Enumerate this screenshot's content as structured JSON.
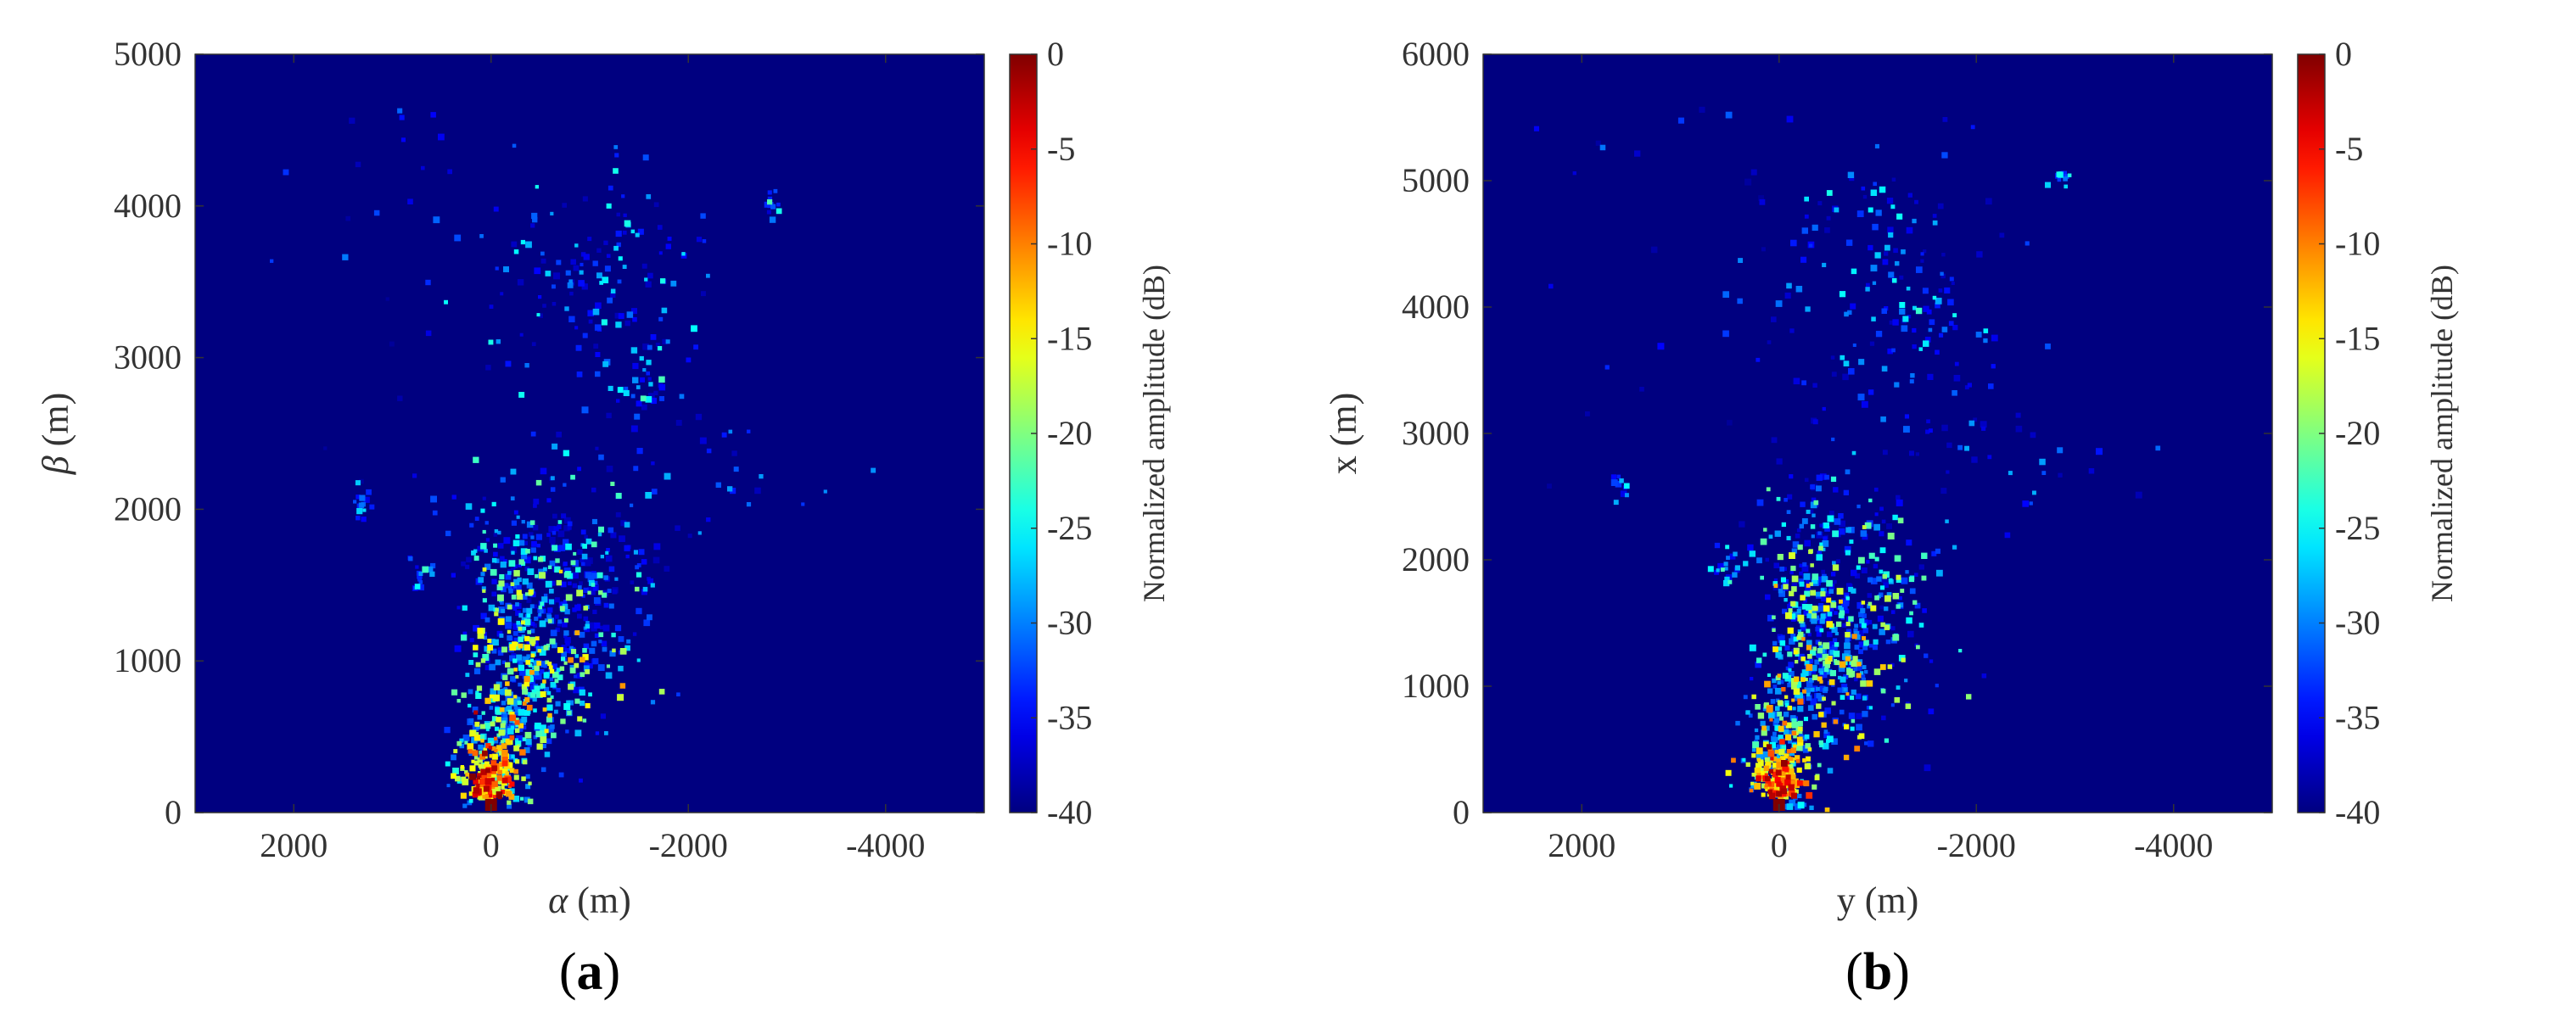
{
  "chart_data": [
    {
      "type": "heatmap",
      "panel_label": {
        "open": "(",
        "letter": "a",
        "close": ")"
      },
      "xlabel": {
        "symbol": "α",
        "unit": " (m)"
      },
      "ylabel": {
        "symbol": "β",
        "unit": " (m)"
      },
      "xlim": [
        3000,
        -5000
      ],
      "ylim": [
        0,
        5000
      ],
      "xticks": [
        2000,
        0,
        -2000,
        -4000
      ],
      "xtick_labels": [
        "2000",
        "0",
        "-2000",
        "-4000"
      ],
      "yticks": [
        0,
        1000,
        2000,
        3000,
        4000,
        5000
      ],
      "ytick_labels": [
        "0",
        "1000",
        "2000",
        "3000",
        "4000",
        "5000"
      ],
      "colorbar": {
        "label": "Normalized amplitude (dB)",
        "range": [
          -40,
          0
        ],
        "ticks": [
          0,
          -5,
          -10,
          -15,
          -20,
          -25,
          -30,
          -35,
          -40
        ],
        "tick_labels": [
          "0",
          "-5",
          "-10",
          "-15",
          "-20",
          "-25",
          "-30",
          "-35",
          "-40"
        ],
        "colormap": "jet"
      },
      "background_value_db": -40,
      "peak": {
        "x": 0,
        "y": 0,
        "value_db": 0
      },
      "clusters": [
        {
          "x": 0,
          "y": 100,
          "sx": 120,
          "sy": 160,
          "n": 160,
          "level": [
            -18,
            0
          ]
        },
        {
          "x": -50,
          "y": 450,
          "sx": 200,
          "sy": 280,
          "n": 220,
          "level": [
            -32,
            -8
          ]
        },
        {
          "x": -500,
          "y": 900,
          "sx": 280,
          "sy": 260,
          "n": 200,
          "level": [
            -34,
            -10
          ]
        },
        {
          "x": -200,
          "y": 1300,
          "sx": 220,
          "sy": 250,
          "n": 140,
          "level": [
            -36,
            -14
          ]
        },
        {
          "x": -800,
          "y": 1250,
          "sx": 380,
          "sy": 320,
          "n": 170,
          "level": [
            -37,
            -16
          ]
        },
        {
          "x": -400,
          "y": 1800,
          "sx": 400,
          "sy": 250,
          "n": 120,
          "level": [
            -38,
            -20
          ]
        },
        {
          "x": -1200,
          "y": 1600,
          "sx": 300,
          "sy": 200,
          "n": 60,
          "level": [
            -38,
            -22
          ]
        },
        {
          "x": 700,
          "y": 1580,
          "sx": 60,
          "sy": 60,
          "n": 20,
          "level": [
            -36,
            -22
          ]
        },
        {
          "x": 1300,
          "y": 2000,
          "sx": 60,
          "sy": 60,
          "n": 14,
          "level": [
            -36,
            -24
          ]
        },
        {
          "x": -1200,
          "y": 3000,
          "sx": 700,
          "sy": 400,
          "n": 70,
          "level": [
            -38,
            -24
          ]
        },
        {
          "x": -1000,
          "y": 3700,
          "sx": 600,
          "sy": 250,
          "n": 80,
          "level": [
            -38,
            -24
          ]
        },
        {
          "x": -1500,
          "y": 2800,
          "sx": 150,
          "sy": 80,
          "n": 20,
          "level": [
            -36,
            -22
          ]
        },
        {
          "x": -1500,
          "y": 3300,
          "sx": 300,
          "sy": 150,
          "n": 20,
          "level": [
            -38,
            -26
          ]
        },
        {
          "x": -2850,
          "y": 4000,
          "sx": 40,
          "sy": 40,
          "n": 10,
          "level": [
            -34,
            -22
          ]
        },
        {
          "x": -2300,
          "y": 2300,
          "sx": 500,
          "sy": 300,
          "n": 25,
          "level": [
            -38,
            -28
          ]
        },
        {
          "x": 500,
          "y": 4300,
          "sx": 1000,
          "sy": 400,
          "n": 15,
          "level": [
            -39,
            -30
          ]
        },
        {
          "x": 1000,
          "y": 3200,
          "sx": 800,
          "sy": 600,
          "n": 12,
          "level": [
            -39,
            -30
          ]
        }
      ]
    },
    {
      "type": "heatmap",
      "panel_label": {
        "open": "(",
        "letter": "b",
        "close": ")"
      },
      "xlabel": {
        "symbol": "y",
        "unit": " (m)"
      },
      "ylabel": {
        "symbol": "x",
        "unit": " (m)"
      },
      "xlim": [
        3000,
        -5000
      ],
      "ylim": [
        0,
        6000
      ],
      "xticks": [
        2000,
        0,
        -2000,
        -4000
      ],
      "xtick_labels": [
        "2000",
        "0",
        "-2000",
        "-4000"
      ],
      "yticks": [
        0,
        1000,
        2000,
        3000,
        4000,
        5000,
        6000
      ],
      "ytick_labels": [
        "0",
        "1000",
        "2000",
        "3000",
        "4000",
        "5000",
        "6000"
      ],
      "colorbar": {
        "label": "Normalized amplitude (dB)",
        "range": [
          -40,
          0
        ],
        "ticks": [
          0,
          -5,
          -10,
          -15,
          -20,
          -25,
          -30,
          -35,
          -40
        ],
        "tick_labels": [
          "0",
          "-5",
          "-10",
          "-15",
          "-20",
          "-25",
          "-30",
          "-35",
          "-40"
        ],
        "colormap": "jet"
      },
      "background_value_db": -40,
      "peak": {
        "x": 0,
        "y": 0,
        "value_db": 0
      },
      "clusters": [
        {
          "x": 0,
          "y": 120,
          "sx": 120,
          "sy": 180,
          "n": 160,
          "level": [
            -18,
            0
          ]
        },
        {
          "x": -50,
          "y": 550,
          "sx": 200,
          "sy": 320,
          "n": 220,
          "level": [
            -32,
            -8
          ]
        },
        {
          "x": -500,
          "y": 1100,
          "sx": 280,
          "sy": 300,
          "n": 200,
          "level": [
            -34,
            -10
          ]
        },
        {
          "x": -300,
          "y": 1600,
          "sx": 250,
          "sy": 280,
          "n": 140,
          "level": [
            -36,
            -14
          ]
        },
        {
          "x": -900,
          "y": 1500,
          "sx": 380,
          "sy": 360,
          "n": 170,
          "level": [
            -37,
            -16
          ]
        },
        {
          "x": -500,
          "y": 2150,
          "sx": 400,
          "sy": 280,
          "n": 120,
          "level": [
            -38,
            -20
          ]
        },
        {
          "x": 550,
          "y": 1950,
          "sx": 80,
          "sy": 80,
          "n": 20,
          "level": [
            -36,
            -22
          ]
        },
        {
          "x": 1600,
          "y": 2550,
          "sx": 60,
          "sy": 60,
          "n": 10,
          "level": [
            -36,
            -24
          ]
        },
        {
          "x": -1300,
          "y": 3600,
          "sx": 700,
          "sy": 450,
          "n": 70,
          "level": [
            -38,
            -24
          ]
        },
        {
          "x": -1000,
          "y": 4500,
          "sx": 600,
          "sy": 300,
          "n": 80,
          "level": [
            -38,
            -24
          ]
        },
        {
          "x": -1600,
          "y": 3900,
          "sx": 300,
          "sy": 200,
          "n": 25,
          "level": [
            -36,
            -22
          ]
        },
        {
          "x": -2850,
          "y": 5050,
          "sx": 40,
          "sy": 40,
          "n": 10,
          "level": [
            -34,
            -22
          ]
        },
        {
          "x": -2600,
          "y": 2800,
          "sx": 500,
          "sy": 300,
          "n": 25,
          "level": [
            -38,
            -28
          ]
        },
        {
          "x": 500,
          "y": 5200,
          "sx": 1000,
          "sy": 400,
          "n": 15,
          "level": [
            -39,
            -30
          ]
        },
        {
          "x": 1000,
          "y": 3800,
          "sx": 800,
          "sy": 700,
          "n": 12,
          "level": [
            -39,
            -30
          ]
        }
      ]
    }
  ]
}
